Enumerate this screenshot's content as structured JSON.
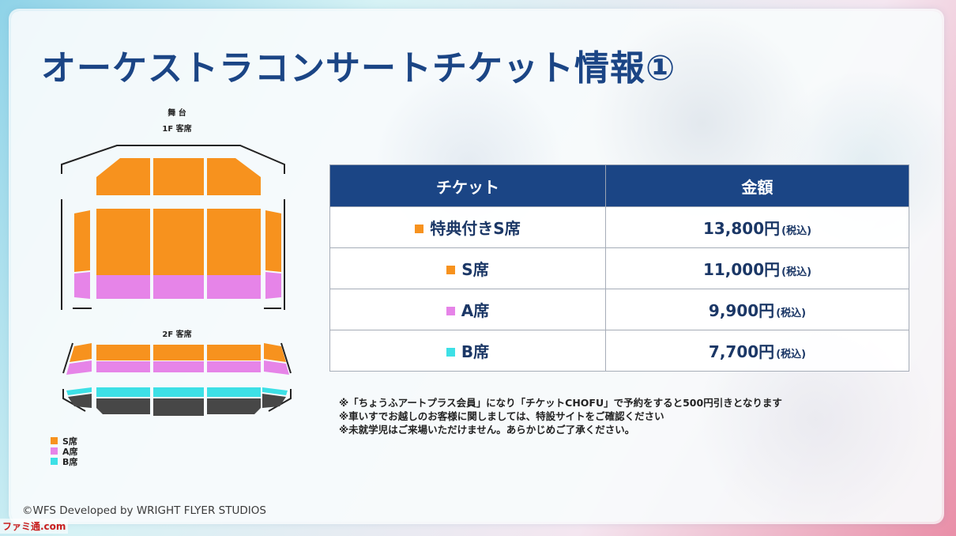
{
  "page": {
    "title": "オーケストラコンサートチケット情報①",
    "copyright": "©WFS  Developed by WRIGHT FLYER STUDIOS",
    "watermark": "ファミ通.com"
  },
  "colors": {
    "title": "#1b4585",
    "header_bg": "#1b4585",
    "s_seat": "#f7921e",
    "a_seat": "#e684e8",
    "b_seat": "#3de0e6",
    "unassigned_seat": "#474747"
  },
  "seat_map": {
    "stage_label": "舞 台",
    "floor1_label": "1F 客席",
    "floor2_label": "2F 客席",
    "legend": [
      {
        "label": "S席",
        "color": "#f7921e"
      },
      {
        "label": "A席",
        "color": "#e684e8"
      },
      {
        "label": "B席",
        "color": "#3de0e6"
      }
    ]
  },
  "price_table": {
    "headers": [
      "チケット",
      "金額"
    ],
    "rows": [
      {
        "ticket": "特典付きS席",
        "price": "13,800円",
        "tax": "(税込)",
        "color": "#f7921e"
      },
      {
        "ticket": "S席",
        "price": "11,000円",
        "tax": "(税込)",
        "color": "#f7921e"
      },
      {
        "ticket": "A席",
        "price": "9,900円",
        "tax": "(税込)",
        "color": "#e684e8"
      },
      {
        "ticket": "B席",
        "price": "7,700円",
        "tax": "(税込)",
        "color": "#3de0e6"
      }
    ]
  },
  "notes": [
    "※「ちょうふアートプラス会員」になり「チケットCHOFU」で予約をすると500円引きとなります",
    "※車いすでお越しのお客様に関しましては、特設サイトをご確認ください",
    "※未就学児はご来場いただけません。あらかじめご了承ください。"
  ]
}
